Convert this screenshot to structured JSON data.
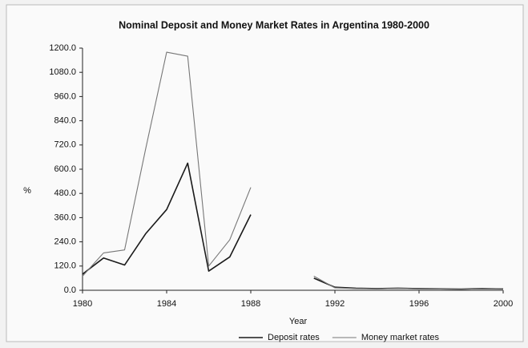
{
  "chart_data": {
    "type": "line",
    "title": "Nominal Deposit and Money Market Rates in Argentina 1980-2000",
    "xlabel": "Year",
    "ylabel": "%",
    "x": [
      1980,
      1981,
      1982,
      1983,
      1984,
      1985,
      1986,
      1987,
      1988,
      1989,
      1990,
      1991,
      1992,
      1993,
      1994,
      1995,
      1996,
      1997,
      1998,
      1999,
      2000
    ],
    "series": [
      {
        "name": "Deposit rates",
        "color": "#1a1a1a",
        "values": [
          80,
          160,
          125,
          280,
          400,
          630,
          95,
          165,
          375,
          null,
          null,
          60,
          15,
          10,
          8,
          10,
          8,
          7,
          6,
          8,
          7
        ]
      },
      {
        "name": "Money market rates",
        "color": "#777777",
        "values": [
          70,
          185,
          200,
          700,
          1180,
          1160,
          120,
          250,
          510,
          null,
          null,
          70,
          12,
          8,
          7,
          9,
          7,
          6,
          5,
          7,
          8
        ]
      }
    ],
    "xlim": [
      1980,
      2000
    ],
    "xticks": [
      1980,
      1984,
      1988,
      1992,
      1996,
      2000
    ],
    "ylim": [
      0,
      1200
    ],
    "yticks": [
      {
        "value": 0,
        "label": "0.0"
      },
      {
        "value": 120,
        "label": "120.0"
      },
      {
        "value": 240,
        "label": "240.0"
      },
      {
        "value": 360,
        "label": "360.0"
      },
      {
        "value": 480,
        "label": "480.0"
      },
      {
        "value": 600,
        "label": "600.0"
      },
      {
        "value": 720,
        "label": "720.0"
      },
      {
        "value": 840,
        "label": "840.0"
      },
      {
        "value": 960,
        "label": "960.0"
      },
      {
        "value": 1080,
        "label": "1080.0"
      },
      {
        "value": 1200,
        "label": "1200.0"
      }
    ],
    "legend": "bottom"
  }
}
